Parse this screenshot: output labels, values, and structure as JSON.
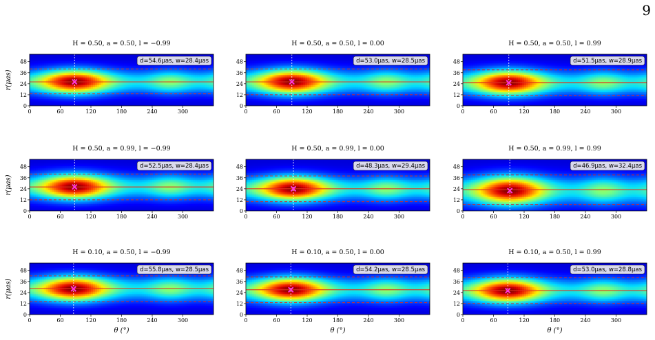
{
  "page": {
    "number": "9"
  },
  "chart_data": [
    {
      "type": "heatmap",
      "title": "H = 0.50, a = 0.50, l = −0.99",
      "annotation": "d=54.6μas, w=28.4μas",
      "ylabel": "r(μas)",
      "xlabel": "",
      "x_ticks": [
        "0",
        "60",
        "120",
        "180",
        "240",
        "300"
      ],
      "y_ticks": [
        "0",
        "12",
        "24",
        "36",
        "48"
      ],
      "xlim": [
        0,
        360
      ],
      "ylim": [
        0,
        56
      ],
      "ring_radius": 26,
      "inner_radius": 13,
      "outer_radius": 40,
      "peak_pa": 88,
      "peak_r": 26
    },
    {
      "type": "heatmap",
      "title": "H = 0.50, a = 0.50, l = 0.00",
      "annotation": "d=53.0μas, w=28.5μas",
      "ylabel": "",
      "xlabel": "",
      "x_ticks": [
        "0",
        "60",
        "120",
        "180",
        "240",
        "300"
      ],
      "y_ticks": [
        "0",
        "12",
        "24",
        "36",
        "48"
      ],
      "xlim": [
        0,
        360
      ],
      "ylim": [
        0,
        56
      ],
      "ring_radius": 26,
      "inner_radius": 12,
      "outer_radius": 40,
      "peak_pa": 90,
      "peak_r": 26
    },
    {
      "type": "heatmap",
      "title": "H = 0.50, a = 0.50, l = 0.99",
      "annotation": "d=51.5μas, w=28.9μas",
      "ylabel": "",
      "xlabel": "",
      "x_ticks": [
        "0",
        "60",
        "120",
        "180",
        "240",
        "300"
      ],
      "y_ticks": [
        "0",
        "12",
        "24",
        "36",
        "48"
      ],
      "xlim": [
        0,
        360
      ],
      "ylim": [
        0,
        56
      ],
      "ring_radius": 25,
      "inner_radius": 11,
      "outer_radius": 39,
      "peak_pa": 90,
      "peak_r": 25
    },
    {
      "type": "heatmap",
      "title": "H = 0.50, a = 0.99, l = −0.99",
      "annotation": "d=52.5μas, w=28.4μas",
      "ylabel": "r(μas)",
      "xlabel": "",
      "x_ticks": [
        "0",
        "60",
        "120",
        "180",
        "240",
        "300"
      ],
      "y_ticks": [
        "0",
        "12",
        "24",
        "36",
        "48"
      ],
      "xlim": [
        0,
        360
      ],
      "ylim": [
        0,
        56
      ],
      "ring_radius": 26,
      "inner_radius": 12,
      "outer_radius": 40,
      "peak_pa": 88,
      "peak_r": 26
    },
    {
      "type": "heatmap",
      "title": "H = 0.50, a = 0.99, l = 0.00",
      "annotation": "d=48.3μas, w=29.4μas",
      "ylabel": "",
      "xlabel": "",
      "x_ticks": [
        "0",
        "60",
        "120",
        "180",
        "240",
        "300"
      ],
      "y_ticks": [
        "0",
        "12",
        "24",
        "36",
        "48"
      ],
      "xlim": [
        0,
        360
      ],
      "ylim": [
        0,
        56
      ],
      "ring_radius": 24,
      "inner_radius": 10,
      "outer_radius": 38,
      "peak_pa": 93,
      "peak_r": 24
    },
    {
      "type": "heatmap",
      "title": "H = 0.50, a = 0.99, l = 0.99",
      "annotation": "d=46.9μas, w=32.4μas",
      "ylabel": "",
      "xlabel": "",
      "x_ticks": [
        "0",
        "60",
        "120",
        "180",
        "240",
        "300"
      ],
      "y_ticks": [
        "0",
        "12",
        "24",
        "36",
        "48"
      ],
      "xlim": [
        0,
        360
      ],
      "ylim": [
        0,
        56
      ],
      "ring_radius": 23,
      "inner_radius": 7,
      "outer_radius": 39,
      "peak_pa": 92,
      "peak_r": 22
    },
    {
      "type": "heatmap",
      "title": "H = 0.10, a = 0.50, l = −0.99",
      "annotation": "d=55.8μas, w=28.5μas",
      "ylabel": "r(μas)",
      "xlabel": "θ (°)",
      "x_ticks": [
        "0",
        "60",
        "120",
        "180",
        "240",
        "300"
      ],
      "y_ticks": [
        "0",
        "12",
        "24",
        "36",
        "48"
      ],
      "xlim": [
        0,
        360
      ],
      "ylim": [
        0,
        56
      ],
      "ring_radius": 28,
      "inner_radius": 14,
      "outer_radius": 42,
      "peak_pa": 86,
      "peak_r": 28
    },
    {
      "type": "heatmap",
      "title": "H = 0.10, a = 0.50, l = 0.00",
      "annotation": "d=54.2μas, w=28.5μas",
      "ylabel": "",
      "xlabel": "θ (°)",
      "x_ticks": [
        "0",
        "60",
        "120",
        "180",
        "240",
        "300"
      ],
      "y_ticks": [
        "0",
        "12",
        "24",
        "36",
        "48"
      ],
      "xlim": [
        0,
        360
      ],
      "ylim": [
        0,
        56
      ],
      "ring_radius": 27,
      "inner_radius": 13,
      "outer_radius": 41,
      "peak_pa": 88,
      "peak_r": 27
    },
    {
      "type": "heatmap",
      "title": "H = 0.10, a = 0.50, l = 0.99",
      "annotation": "d=53.0μas, w=28.8μas",
      "ylabel": "",
      "xlabel": "θ (°)",
      "x_ticks": [
        "0",
        "60",
        "120",
        "180",
        "240",
        "300"
      ],
      "y_ticks": [
        "0",
        "12",
        "24",
        "36",
        "48"
      ],
      "xlim": [
        0,
        360
      ],
      "ylim": [
        0,
        56
      ],
      "ring_radius": 26,
      "inner_radius": 12,
      "outer_radius": 40,
      "peak_pa": 88,
      "peak_r": 26
    }
  ],
  "colors": {
    "ring_line": "#e0301e",
    "dashed_line": "#d62728",
    "peak_marker": "#ff33dd",
    "annotation_bg": "#e6e6ee"
  }
}
